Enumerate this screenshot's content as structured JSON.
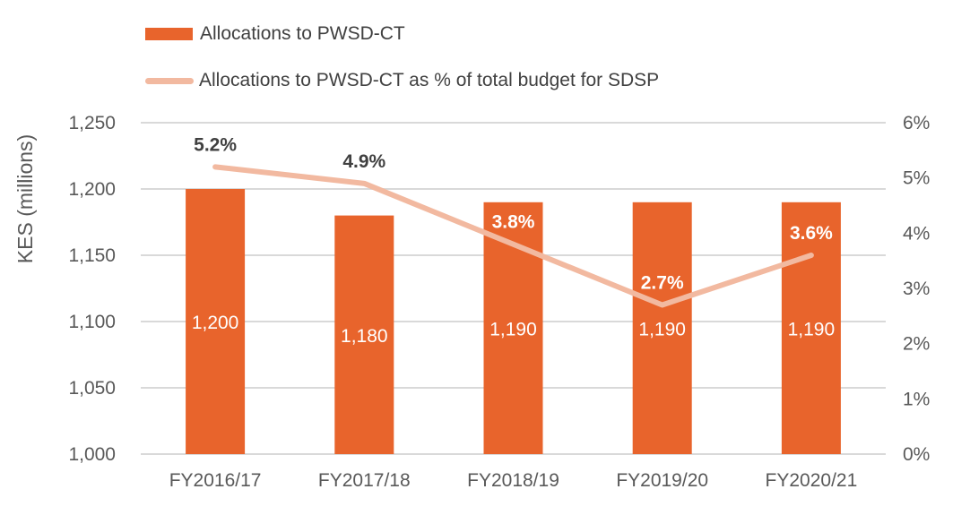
{
  "chart_data": {
    "type": "bar",
    "categories": [
      "FY2016/17",
      "FY2017/18",
      "FY2018/19",
      "FY2019/20",
      "FY2020/21"
    ],
    "series": [
      {
        "name": "Allocations to PWSD-CT",
        "type": "bar",
        "axis": "left",
        "values": [
          1200,
          1180,
          1190,
          1190,
          1190
        ],
        "labels": [
          "1,200",
          "1,180",
          "1,190",
          "1,190",
          "1,190"
        ],
        "color": "#E8642C"
      },
      {
        "name": "Allocations to PWSD-CT as % of total budget for SDSP",
        "type": "line",
        "axis": "right",
        "values": [
          5.2,
          4.9,
          3.8,
          2.7,
          3.6
        ],
        "labels": [
          "5.2%",
          "4.9%",
          "3.8%",
          "2.7%",
          "3.6%"
        ],
        "color": "#F2B9A0"
      }
    ],
    "ylabel": "KES (millions)",
    "ylim": [
      1000,
      1250
    ],
    "yticks": [
      "1,000",
      "1,050",
      "1,100",
      "1,150",
      "1,200",
      "1,250"
    ],
    "y2lim": [
      0,
      6
    ],
    "y2ticks": [
      "0%",
      "1%",
      "2%",
      "3%",
      "4%",
      "5%",
      "6%"
    ],
    "grid": true,
    "legend": "top-left"
  },
  "colors": {
    "grid": "#D9D9D9",
    "text": "#595959",
    "legend_text": "#404040",
    "pct_label_dark": "#404040",
    "pct_label_light": "#ffffff"
  }
}
